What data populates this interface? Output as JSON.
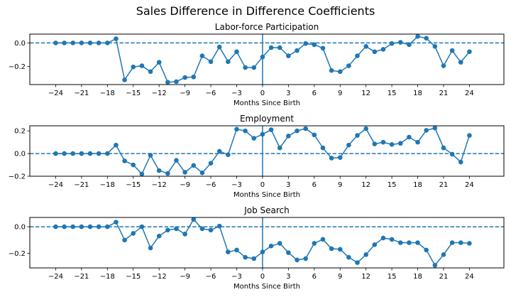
{
  "chart_data": {
    "title": "Sales Difference in Difference Coefficients",
    "colors": {
      "series": "#1f77b4",
      "reference": "#1f77b4",
      "frame": "#000000"
    },
    "x": [
      -24,
      -23,
      -22,
      -21,
      -20,
      -19,
      -18,
      -17,
      -16,
      -15,
      -14,
      -13,
      -12,
      -11,
      -10,
      -9,
      -8,
      -7,
      -6,
      -5,
      -4,
      -3,
      -2,
      -1,
      0,
      1,
      2,
      3,
      4,
      5,
      6,
      7,
      8,
      9,
      10,
      11,
      12,
      13,
      14,
      15,
      16,
      17,
      18,
      19,
      20,
      21,
      22,
      23,
      24
    ],
    "xticks": [
      -24,
      -21,
      -18,
      -15,
      -12,
      -9,
      -6,
      -3,
      0,
      3,
      6,
      9,
      12,
      15,
      18,
      21,
      24
    ],
    "xtick_labels": [
      "−24",
      "−21",
      "−18",
      "−15",
      "−12",
      "−9",
      "−6",
      "−3",
      "0",
      "3",
      "6",
      "9",
      "12",
      "15",
      "18",
      "21",
      "24"
    ],
    "xlim": [
      -27,
      28
    ],
    "panels": [
      {
        "type": "line",
        "title": "Labor-force Participation",
        "xlabel": "Months Since Birth",
        "ylim": [
          -0.355,
          0.075
        ],
        "yticks": [
          0.0,
          -0.2
        ],
        "ytick_labels": [
          "0.0",
          "−0.2"
        ],
        "hline": 0,
        "vline": 0,
        "values": [
          0,
          0,
          0,
          0,
          0,
          0,
          0,
          0.035,
          -0.315,
          -0.205,
          -0.195,
          -0.245,
          -0.165,
          -0.335,
          -0.33,
          -0.295,
          -0.29,
          -0.11,
          -0.16,
          -0.035,
          -0.16,
          -0.075,
          -0.21,
          -0.21,
          -0.12,
          -0.04,
          -0.04,
          -0.11,
          -0.065,
          -0.005,
          -0.015,
          -0.045,
          -0.235,
          -0.245,
          -0.195,
          -0.11,
          -0.03,
          -0.075,
          -0.055,
          -0.005,
          0.005,
          -0.015,
          0.055,
          0.04,
          -0.03,
          -0.195,
          -0.065,
          -0.165,
          -0.075
        ]
      },
      {
        "type": "line",
        "title": "Employment",
        "xlabel": "Months Since Birth",
        "ylim": [
          -0.2,
          0.245
        ],
        "yticks": [
          0.2,
          0.0,
          -0.2
        ],
        "ytick_labels": [
          "0.2",
          "0.0",
          "−0.2"
        ],
        "hline": 0,
        "vline": 0,
        "values": [
          0,
          0,
          0,
          0,
          0,
          0,
          0,
          0.075,
          -0.065,
          -0.1,
          -0.18,
          -0.015,
          -0.15,
          -0.175,
          -0.06,
          -0.165,
          -0.105,
          -0.17,
          -0.085,
          0.02,
          -0.01,
          0.215,
          0.2,
          0.135,
          0.17,
          0.21,
          0.05,
          0.155,
          0.2,
          0.22,
          0.165,
          0.05,
          -0.04,
          -0.035,
          0.075,
          0.16,
          0.22,
          0.085,
          0.1,
          0.08,
          0.09,
          0.145,
          0.1,
          0.205,
          0.225,
          0.05,
          -0.005,
          -0.075,
          0.16
        ]
      },
      {
        "type": "line",
        "title": "Job Search",
        "xlabel": "Months Since Birth",
        "ylim": [
          -0.31,
          0.07
        ],
        "yticks": [
          0.0,
          -0.2
        ],
        "ytick_labels": [
          "0.0",
          "−0.2"
        ],
        "hline": 0,
        "vline": 0,
        "values": [
          0,
          0,
          0,
          0,
          0,
          0,
          0,
          0.035,
          -0.1,
          -0.05,
          0,
          -0.16,
          -0.07,
          -0.025,
          -0.015,
          -0.055,
          0.055,
          -0.015,
          -0.025,
          0.005,
          -0.19,
          -0.175,
          -0.23,
          -0.24,
          -0.19,
          -0.145,
          -0.125,
          -0.195,
          -0.25,
          -0.24,
          -0.125,
          -0.095,
          -0.165,
          -0.17,
          -0.23,
          -0.27,
          -0.21,
          -0.135,
          -0.085,
          -0.095,
          -0.12,
          -0.12,
          -0.12,
          -0.175,
          -0.29,
          -0.21,
          -0.12,
          -0.12,
          -0.125
        ]
      }
    ]
  }
}
